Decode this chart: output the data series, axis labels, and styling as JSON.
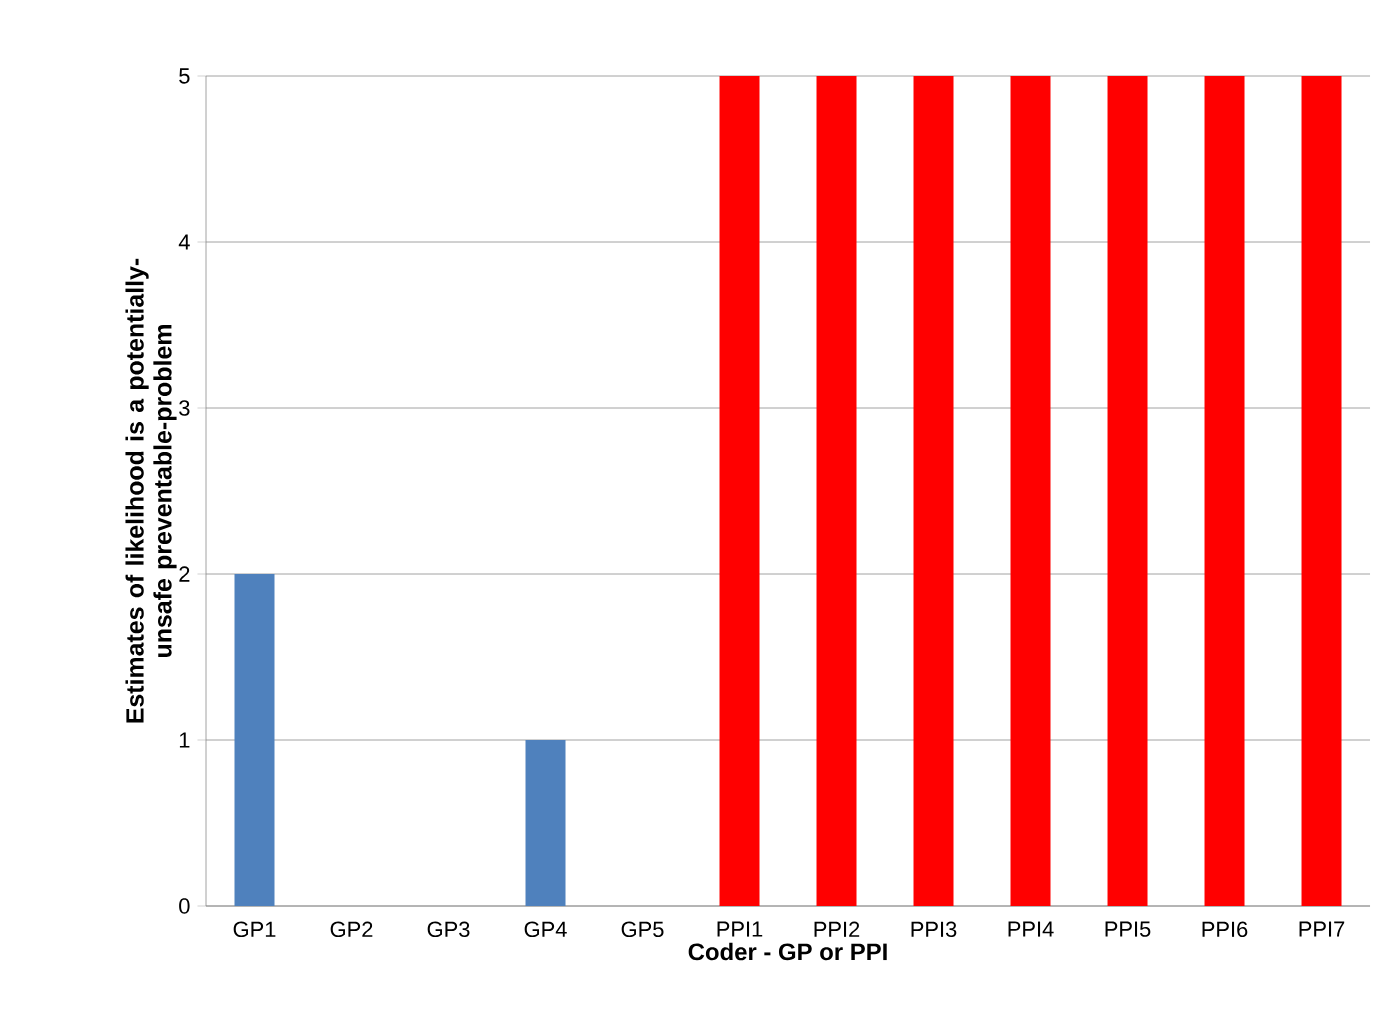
{
  "chart_data": {
    "type": "bar",
    "xlabel": "Coder - GP or PPI",
    "ylabel": "Estimates of likelihood is a potentially-unsafe preventable-problem",
    "categories": [
      "GP1",
      "GP2",
      "GP3",
      "GP4",
      "GP5",
      "PPI1",
      "PPI2",
      "PPI3",
      "PPI4",
      "PPI5",
      "PPI6",
      "PPI7"
    ],
    "values": [
      2,
      0,
      0,
      1,
      0,
      5,
      5,
      5,
      5,
      5,
      5,
      5
    ],
    "colors": [
      "#4f81bd",
      "#4f81bd",
      "#4f81bd",
      "#4f81bd",
      "#4f81bd",
      "#ff0000",
      "#ff0000",
      "#ff0000",
      "#ff0000",
      "#ff0000",
      "#ff0000",
      "#ff0000"
    ],
    "ylim": [
      0,
      5
    ],
    "yticks": [
      0,
      1,
      2,
      3,
      4,
      5
    ],
    "grid": "y"
  }
}
